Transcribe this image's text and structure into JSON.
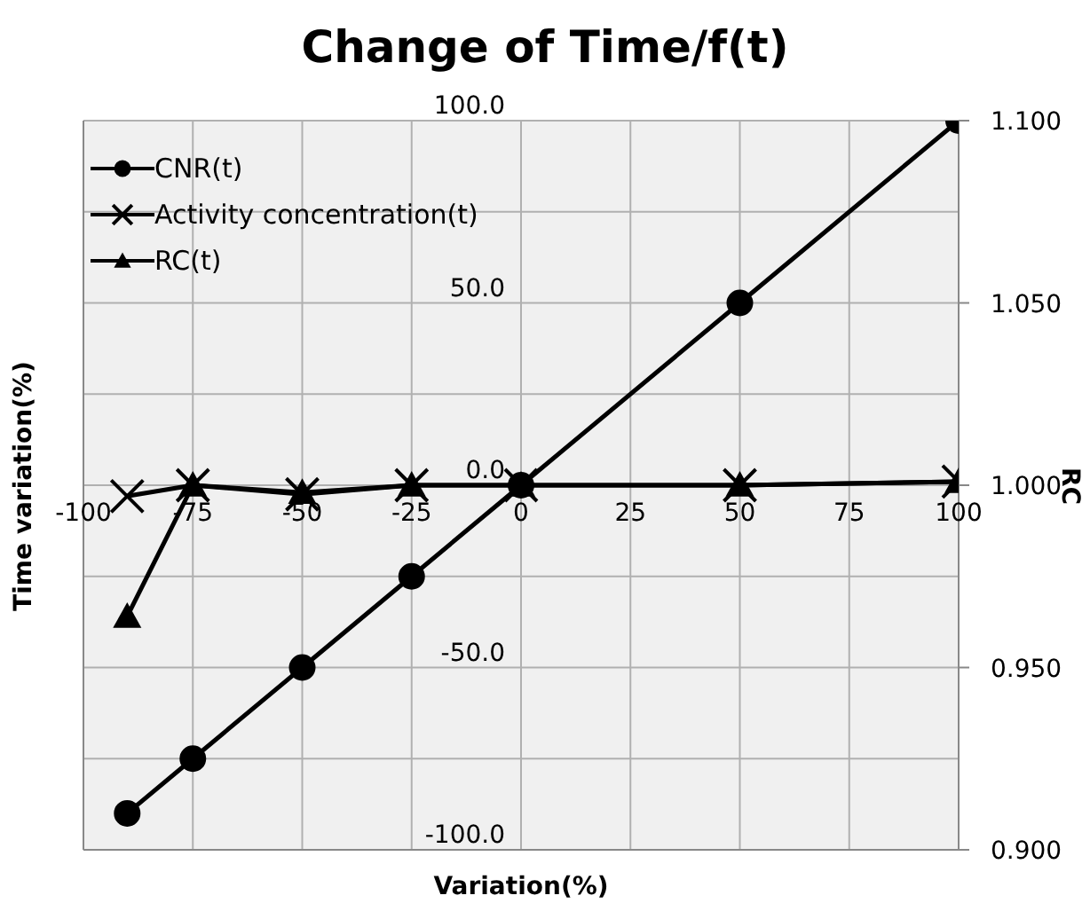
{
  "chart_data": {
    "type": "line",
    "title": "Change of Time/f(t)",
    "xlabel": "Variation(%)",
    "ylabel": "Time variation(%)",
    "y2label": "RC",
    "x": [
      -90,
      -75,
      -50,
      -25,
      0,
      50,
      100
    ],
    "series": [
      {
        "name": "CNR(t)",
        "color": "#000000",
        "marker": "circle",
        "values": [
          -90,
          -75,
          -50,
          -25,
          0,
          50,
          100
        ]
      },
      {
        "name": "Activity concentration(t)",
        "color": "#000000",
        "marker": "cross",
        "values": [
          -3,
          0,
          -2.5,
          0,
          0,
          0,
          1
        ]
      },
      {
        "name": "RC(t)",
        "color": "#000000",
        "marker": "triangle",
        "axis": "y2",
        "values": [
          0.964,
          1.0,
          0.998,
          1.0,
          1.0,
          1.0,
          1.001
        ]
      }
    ],
    "xlim": [
      -100,
      100
    ],
    "xticks": [
      -100,
      -75,
      -50,
      -25,
      0,
      25,
      50,
      75,
      100
    ],
    "ylim": [
      -100,
      100
    ],
    "yticks": [
      {
        "value": -100,
        "label": "-100.0"
      },
      {
        "value": -75,
        "label": null
      },
      {
        "value": -50,
        "label": "-50.0"
      },
      {
        "value": -25,
        "label": null
      },
      {
        "value": 0,
        "label": "0.0"
      },
      {
        "value": 25,
        "label": null
      },
      {
        "value": 50,
        "label": "50.0"
      },
      {
        "value": 75,
        "label": null
      },
      {
        "value": 100,
        "label": "100.0"
      }
    ],
    "y2lim": [
      0.9,
      1.1
    ],
    "y2ticks": [
      {
        "value": 0.9,
        "label": "0.900"
      },
      {
        "value": 0.95,
        "label": "0.950"
      },
      {
        "value": 1.0,
        "label": "1.000"
      },
      {
        "value": 1.05,
        "label": "1.050"
      },
      {
        "value": 1.1,
        "label": "1.100"
      }
    ],
    "grid": true,
    "legend": "top left",
    "line_style": "solid"
  }
}
